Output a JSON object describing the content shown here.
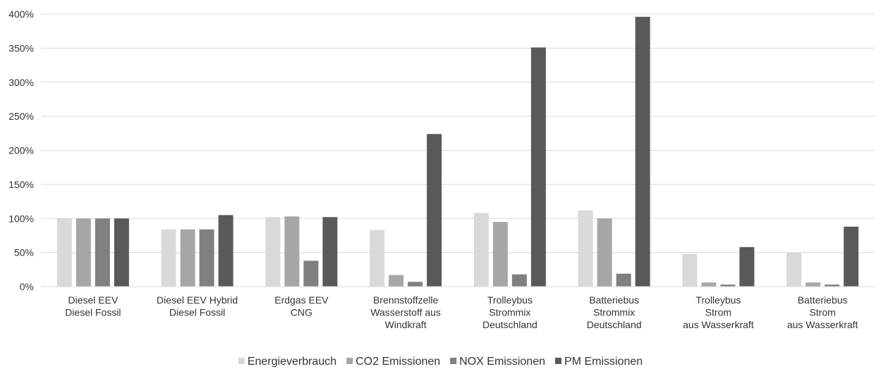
{
  "chart_data": {
    "type": "bar",
    "title": "",
    "xlabel": "",
    "ylabel": "",
    "ylim": [
      0,
      400
    ],
    "y_ticks": [
      "0%",
      "50%",
      "100%",
      "150%",
      "200%",
      "250%",
      "300%",
      "350%",
      "400%"
    ],
    "y_unit": "%",
    "grid": "horizontal",
    "legend_position": "bottom",
    "categories": [
      [
        "Diesel EEV",
        "Diesel Fossil"
      ],
      [
        "Diesel EEV Hybrid",
        "Diesel Fossil"
      ],
      [
        "Erdgas EEV",
        "CNG"
      ],
      [
        "Brennstoffzelle",
        "Wasserstoff aus",
        "Windkraft"
      ],
      [
        "Trolleybus",
        "Strommix",
        "Deutschland"
      ],
      [
        "Batteriebus",
        "Strommix",
        "Deutschland"
      ],
      [
        "Trolleybus",
        "Strom",
        "aus Wasserkraft"
      ],
      [
        "Batteriebus",
        "Strom",
        "aus Wasserkraft"
      ]
    ],
    "series": [
      {
        "name": "Energieverbrauch",
        "color": "#d9d9d9",
        "values": [
          100,
          84,
          102,
          83,
          108,
          112,
          48,
          50
        ]
      },
      {
        "name": "CO2 Emissionen",
        "color": "#a6a6a6",
        "values": [
          100,
          84,
          103,
          17,
          95,
          100,
          6,
          6
        ]
      },
      {
        "name": "NOX Emissionen",
        "color": "#808080",
        "values": [
          100,
          84,
          38,
          7,
          18,
          19,
          3,
          3
        ]
      },
      {
        "name": "PM Emissionen",
        "color": "#595959",
        "values": [
          100,
          105,
          102,
          224,
          351,
          396,
          58,
          88
        ]
      }
    ]
  }
}
